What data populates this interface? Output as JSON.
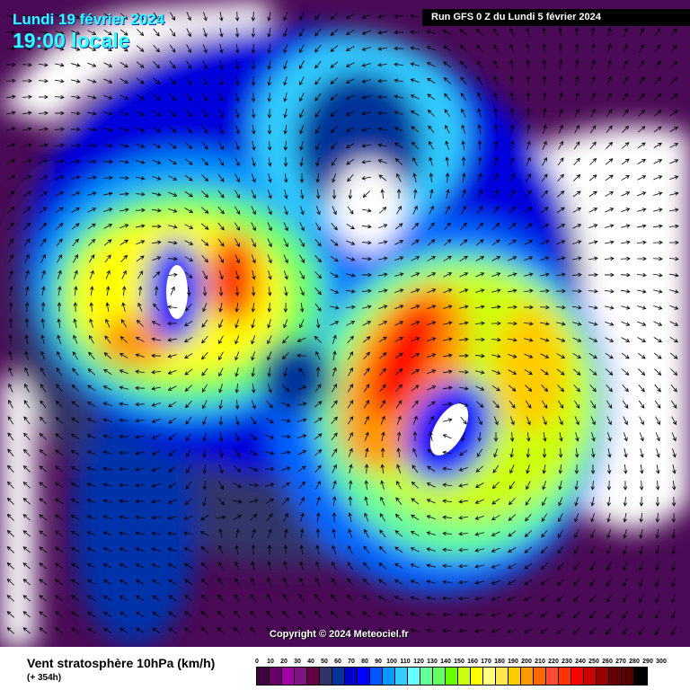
{
  "header": {
    "date": "Lundi 19 février 2024",
    "time": "19:00 locale",
    "run": "Run GFS 0 Z du Lundi 5 février 2024"
  },
  "copyright": "Copyright © 2024 Meteociel.fr",
  "footer": {
    "title": "Vent stratosphère 10hPa (km/h)",
    "forecast_hour": "(+ 354h)"
  },
  "legend": {
    "ticks": [
      "0",
      "10",
      "20",
      "30",
      "40",
      "50",
      "60",
      "70",
      "80",
      "90",
      "100",
      "110",
      "120",
      "130",
      "140",
      "150",
      "160",
      "170",
      "180",
      "190",
      "200",
      "210",
      "220",
      "230",
      "240",
      "250",
      "260",
      "270",
      "280",
      "290",
      "300"
    ],
    "colors": [
      "#3f0040",
      "#660066",
      "#a300a3",
      "#7f1580",
      "#640040",
      "#303468",
      "#003399",
      "#0000cc",
      "#0000ff",
      "#0055ff",
      "#0099ff",
      "#33ccff",
      "#66ffff",
      "#66ff99",
      "#66ff66",
      "#66ff00",
      "#ccff11",
      "#ffff00",
      "#ffff80",
      "#ffe84d",
      "#ffcc00",
      "#ff9900",
      "#ff6600",
      "#ff4c33",
      "#ff3300",
      "#ff0000",
      "#cc0000",
      "#990000",
      "#660000",
      "#550000",
      "#000000"
    ]
  }
}
